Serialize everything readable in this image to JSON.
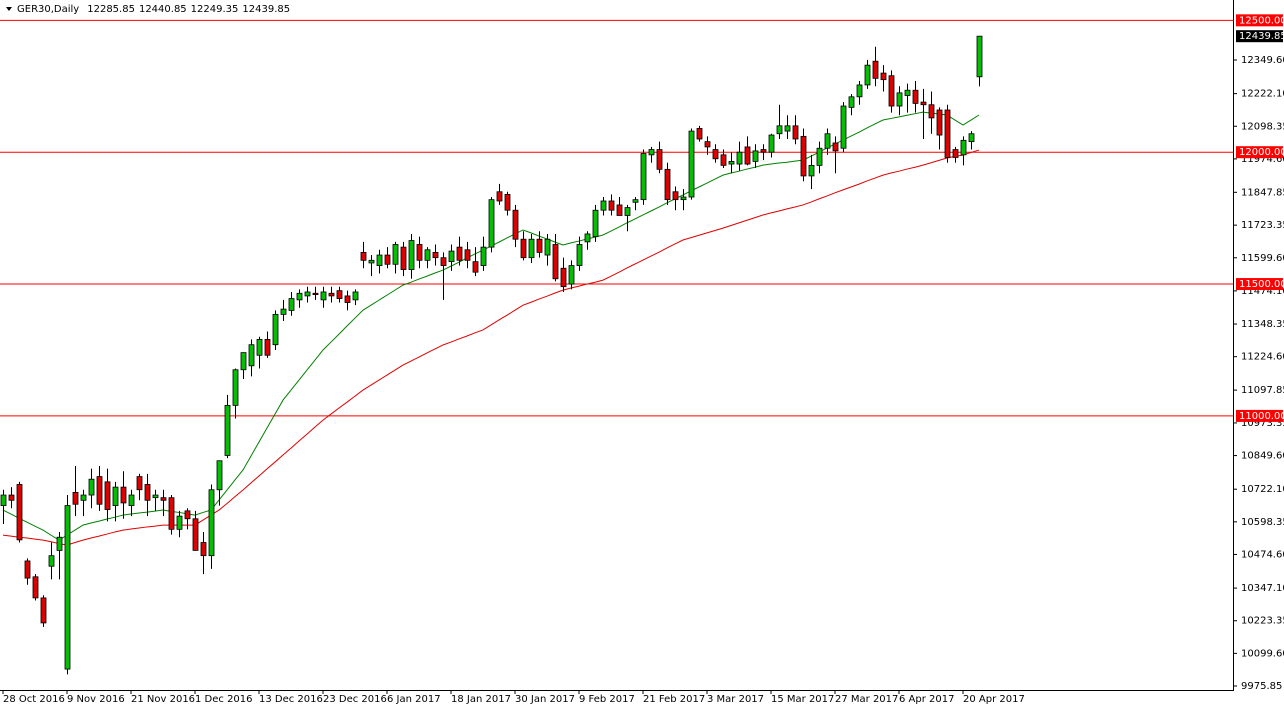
{
  "chart_data": {
    "type": "candlestick",
    "title": "GER30,Daily",
    "categories": [
      "28 Oct 2016",
      null,
      null,
      null,
      null,
      null,
      null,
      null,
      "9 Nov 2016",
      null,
      null,
      null,
      null,
      null,
      null,
      null,
      "21 Nov 2016",
      null,
      null,
      null,
      null,
      null,
      null,
      null,
      "1 Dec 2016",
      null,
      null,
      null,
      null,
      null,
      null,
      null,
      "13 Dec 2016",
      null,
      null,
      null,
      null,
      null,
      null,
      null,
      "23 Dec 2016",
      null,
      null,
      null,
      null,
      null,
      null,
      null,
      "6 Jan 2017",
      null,
      null,
      null,
      null,
      null,
      null,
      null,
      "18 Jan 2017",
      null,
      null,
      null,
      null,
      null,
      null,
      null,
      "30 Jan 2017",
      null,
      null,
      null,
      null,
      null,
      null,
      null,
      "9 Feb 2017",
      null,
      null,
      null,
      null,
      null,
      null,
      null,
      "21 Feb 2017",
      null,
      null,
      null,
      null,
      null,
      null,
      null,
      "3 Mar 2017",
      null,
      null,
      null,
      null,
      null,
      null,
      null,
      "15 Mar 2017",
      null,
      null,
      null,
      null,
      null,
      null,
      null,
      "27 Mar 2017",
      null,
      null,
      null,
      null,
      null,
      null,
      null,
      "6 Apr 2017",
      null,
      null,
      null,
      null,
      null,
      null,
      null,
      "20 Apr 2017",
      null,
      null
    ],
    "open": [
      10660,
      10700,
      10740,
      10450,
      10390,
      10310,
      10430,
      10490,
      10040,
      10710,
      10680,
      10700,
      10770,
      10750,
      10660,
      10730,
      10660,
      10770,
      10740,
      10690,
      10690,
      10690,
      10570,
      10640,
      10610,
      10520,
      10470,
      10720,
      10850,
      11040,
      11175,
      11190,
      11230,
      11290,
      11270,
      11385,
      11400,
      11440,
      11455,
      11465,
      11440,
      11465,
      11475,
      11455,
      11440,
      11620,
      11580,
      11570,
      11610,
      11575,
      11640,
      11555,
      11650,
      11590,
      11620,
      11600,
      11585,
      11640,
      11630,
      11585,
      11570,
      11640,
      11850,
      11840,
      11780,
      11670,
      11600,
      11670,
      11610,
      11650,
      11560,
      11500,
      11570,
      11660,
      11680,
      11780,
      11815,
      11800,
      11760,
      11810,
      11820,
      11990,
      12010,
      11935,
      11850,
      11820,
      11830,
      12090,
      12040,
      12010,
      11990,
      11955,
      11955,
      12020,
      11965,
      12010,
      12000,
      12070,
      12080,
      12100,
      12060,
      11910,
      11950,
      12015,
      12035,
      12015,
      12170,
      12210,
      12255,
      12345,
      12300,
      12290,
      12175,
      12215,
      12235,
      12190,
      12180,
      12160,
      12160,
      12010,
      11990,
      12040,
      12285.85
    ],
    "high": [
      10720,
      10730,
      10750,
      10460,
      10400,
      10320,
      10520,
      10560,
      10700,
      10810,
      10720,
      10800,
      10810,
      10800,
      10750,
      10790,
      10720,
      10780,
      10780,
      10720,
      10720,
      10700,
      10640,
      10650,
      10640,
      10560,
      10740,
      10830,
      11080,
      11180,
      11240,
      11290,
      11300,
      11320,
      11400,
      11440,
      11470,
      11480,
      11490,
      11490,
      11490,
      11490,
      11490,
      11475,
      11480,
      11660,
      11610,
      11630,
      11640,
      11660,
      11660,
      11690,
      11680,
      11640,
      11650,
      11620,
      11650,
      11680,
      11660,
      11640,
      11680,
      11830,
      11880,
      11850,
      11800,
      11700,
      11690,
      11700,
      11690,
      11690,
      11600,
      11590,
      11680,
      11700,
      11800,
      11830,
      11840,
      11830,
      11800,
      11830,
      12010,
      12020,
      12040,
      11960,
      11870,
      11860,
      12090,
      12100,
      12060,
      12030,
      12010,
      12000,
      12040,
      12060,
      12030,
      12030,
      12070,
      12180,
      12140,
      12140,
      12090,
      11990,
      12040,
      12090,
      12060,
      12190,
      12220,
      12270,
      12350,
      12400,
      12330,
      12310,
      12250,
      12260,
      12270,
      12240,
      12230,
      12170,
      12180,
      12020,
      12060,
      12080,
      12440.85
    ],
    "low": [
      10590,
      10650,
      10520,
      10360,
      10300,
      10200,
      10380,
      10380,
      10020,
      10620,
      10620,
      10650,
      10640,
      10600,
      10600,
      10610,
      10620,
      10680,
      10620,
      10640,
      10620,
      10550,
      10540,
      10570,
      10490,
      10400,
      10420,
      10660,
      10840,
      10990,
      11140,
      11150,
      11180,
      11220,
      11250,
      11360,
      11380,
      11410,
      11430,
      11440,
      11410,
      11430,
      11430,
      11400,
      11420,
      11560,
      11530,
      11540,
      11560,
      11540,
      11530,
      11520,
      11560,
      11560,
      11570,
      11440,
      11550,
      11570,
      11560,
      11530,
      11550,
      11620,
      11800,
      11760,
      11640,
      11590,
      11580,
      11600,
      11570,
      11510,
      11470,
      11480,
      11550,
      11630,
      11660,
      11760,
      11760,
      11760,
      11700,
      11780,
      11800,
      11960,
      11920,
      11800,
      11780,
      11780,
      11820,
      12040,
      11990,
      11960,
      11940,
      11920,
      11930,
      11950,
      11940,
      11970,
      11980,
      12050,
      12050,
      12030,
      11890,
      11860,
      11920,
      11990,
      11920,
      12000,
      12140,
      12180,
      12240,
      12250,
      12230,
      12150,
      12140,
      12150,
      12150,
      12050,
      12070,
      12010,
      11960,
      11960,
      11950,
      12010,
      12249.35
    ],
    "close": [
      10700,
      10680,
      10530,
      10385,
      10310,
      10215,
      10470,
      10540,
      10660,
      10665,
      10700,
      10760,
      10665,
      10645,
      10730,
      10670,
      10700,
      10720,
      10680,
      10700,
      10680,
      10570,
      10620,
      10610,
      10490,
      10470,
      10720,
      10830,
      11040,
      11175,
      11240,
      11270,
      11290,
      11230,
      11385,
      11405,
      11445,
      11465,
      11470,
      11460,
      11470,
      11455,
      11445,
      11430,
      11470,
      11590,
      11590,
      11610,
      11575,
      11650,
      11555,
      11665,
      11590,
      11630,
      11600,
      11570,
      11625,
      11590,
      11590,
      11545,
      11640,
      11820,
      11815,
      11780,
      11670,
      11600,
      11670,
      11620,
      11670,
      11520,
      11490,
      11570,
      11650,
      11690,
      11780,
      11815,
      11780,
      11760,
      11790,
      11820,
      11995,
      12010,
      11935,
      11820,
      11820,
      11830,
      12080,
      12050,
      12020,
      11975,
      11950,
      11965,
      12000,
      11955,
      12005,
      12000,
      12065,
      12100,
      12100,
      12050,
      11910,
      11950,
      12015,
      12070,
      12005,
      12175,
      12210,
      12255,
      12330,
      12280,
      12275,
      12175,
      12225,
      12235,
      12185,
      12180,
      12130,
      12065,
      11980,
      11980,
      12045,
      12070,
      12439.85
    ],
    "up_color": "#00c000",
    "down_color": "#e00000",
    "series": [
      {
        "color": "#008000",
        "values": [
          10643,
          10628,
          10612,
          10597,
          10582,
          10567,
          10548,
          10529,
          10548,
          10567,
          10586,
          10594,
          10601,
          10609,
          10616,
          10624,
          10628,
          10632,
          10635,
          10639,
          10643,
          10638,
          10634,
          10629,
          10624,
          10634,
          10643,
          10681,
          10719,
          10757,
          10795,
          10848,
          10901,
          10954,
          11007,
          11060,
          11098,
          11136,
          11174,
          11212,
          11250,
          11280,
          11310,
          11341,
          11371,
          11401,
          11420,
          11439,
          11458,
          11477,
          11496,
          11507,
          11519,
          11530,
          11542,
          11553,
          11568,
          11583,
          11599,
          11614,
          11629,
          11644,
          11659,
          11675,
          11690,
          11705,
          11694,
          11682,
          11671,
          11659,
          11648,
          11656,
          11663,
          11671,
          11678,
          11686,
          11701,
          11716,
          11732,
          11747,
          11762,
          11777,
          11792,
          11808,
          11823,
          11838,
          11853,
          11868,
          11883,
          11898,
          11913,
          11921,
          11928,
          11936,
          11943,
          11951,
          11955,
          11959,
          11962,
          11966,
          11970,
          11985,
          12000,
          12016,
          12031,
          12046,
          12061,
          12076,
          12092,
          12107,
          12122,
          12128,
          12134,
          12140,
          12146,
          12152,
          12148,
          12145,
          12141,
          12122,
          12103,
          12122,
          12141
        ]
      },
      {
        "color": "#e00000",
        "values": [
          10548,
          10544,
          10540,
          10537,
          10533,
          10529,
          10523,
          10516,
          10510,
          10520,
          10529,
          10537,
          10544,
          10552,
          10560,
          10567,
          10571,
          10575,
          10579,
          10582,
          10586,
          10586,
          10586,
          10586,
          10586,
          10605,
          10624,
          10643,
          10668,
          10694,
          10719,
          10746,
          10772,
          10799,
          10825,
          10852,
          10878,
          10905,
          10931,
          10958,
          10984,
          11007,
          11030,
          11052,
          11075,
          11098,
          11117,
          11136,
          11155,
          11174,
          11193,
          11208,
          11223,
          11239,
          11254,
          11269,
          11280,
          11292,
          11303,
          11315,
          11326,
          11345,
          11364,
          11382,
          11401,
          11420,
          11431,
          11443,
          11454,
          11466,
          11477,
          11485,
          11492,
          11500,
          11507,
          11515,
          11530,
          11545,
          11561,
          11576,
          11591,
          11606,
          11621,
          11637,
          11652,
          11667,
          11676,
          11685,
          11694,
          11703,
          11712,
          11722,
          11732,
          11742,
          11752,
          11762,
          11770,
          11777,
          11785,
          11792,
          11800,
          11811,
          11823,
          11834,
          11846,
          11857,
          11868,
          11879,
          11891,
          11902,
          11913,
          11921,
          11928,
          11936,
          11943,
          11951,
          11960,
          11969,
          11978,
          11984,
          11989,
          11999,
          12008
        ]
      }
    ],
    "levels_color": "#ff0000",
    "levels": [
      {
        "value": 12500,
        "label": "12500.00"
      },
      {
        "value": 12000,
        "label": "12000.00"
      },
      {
        "value": 11500,
        "label": "11500.00"
      },
      {
        "value": 11000,
        "label": "11000.00"
      }
    ],
    "ylim": [
      9960.7,
      12569.5
    ],
    "yticks": [
      {
        "value": 12349.6,
        "label": "12349.60"
      },
      {
        "value": 12222.1,
        "label": "12222.10"
      },
      {
        "value": 12098.35,
        "label": "12098.35"
      },
      {
        "value": 11974.6,
        "label": "11974.60"
      },
      {
        "value": 11847.85,
        "label": "11847.85"
      },
      {
        "value": 11723.35,
        "label": "11723.35"
      },
      {
        "value": 11599.6,
        "label": "11599.60"
      },
      {
        "value": 11474.1,
        "label": "11474.10"
      },
      {
        "value": 11348.35,
        "label": "11348.35"
      },
      {
        "value": 11224.6,
        "label": "11224.60"
      },
      {
        "value": 11097.85,
        "label": "11097.85"
      },
      {
        "value": 10973.35,
        "label": "10973.35"
      },
      {
        "value": 10849.6,
        "label": "10849.60"
      },
      {
        "value": 10722.1,
        "label": "10722.10"
      },
      {
        "value": 10598.35,
        "label": "10598.35"
      },
      {
        "value": 10474.6,
        "label": "10474.60"
      },
      {
        "value": 10347.1,
        "label": "10347.10"
      },
      {
        "value": 10223.35,
        "label": "10223.35"
      },
      {
        "value": 10099.6,
        "label": "10099.60"
      },
      {
        "value": 9975.85,
        "label": "9975.85"
      }
    ]
  }
}
